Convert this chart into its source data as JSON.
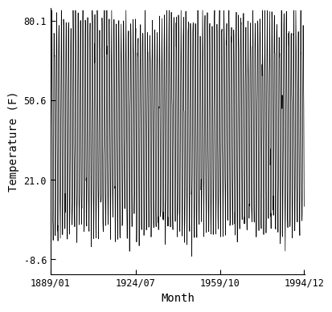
{
  "title": "",
  "xlabel": "Month",
  "ylabel": "Temperature (F)",
  "x_tick_labels": [
    "1889/01",
    "1924/07",
    "1959/10",
    "1994/12"
  ],
  "y_tick_labels": [
    "-8.6",
    "21.0",
    "50.6",
    "80.1"
  ],
  "yticks": [
    -8.6,
    21.0,
    50.6,
    80.1
  ],
  "ylim": [
    -14.0,
    85.0
  ],
  "xlim_start": 1889.0,
  "xlim_end": 1995.1,
  "start_year": 1889,
  "start_month": 1,
  "end_year": 1994,
  "end_month": 12,
  "mean_temp_f": 41.0,
  "amplitude": 38.0,
  "noise_std": 5.0,
  "line_color": "#000000",
  "line_width": 0.5,
  "background_color": "#ffffff",
  "font_family": "monospace",
  "tick_fontsize": 8.5,
  "label_fontsize": 10
}
